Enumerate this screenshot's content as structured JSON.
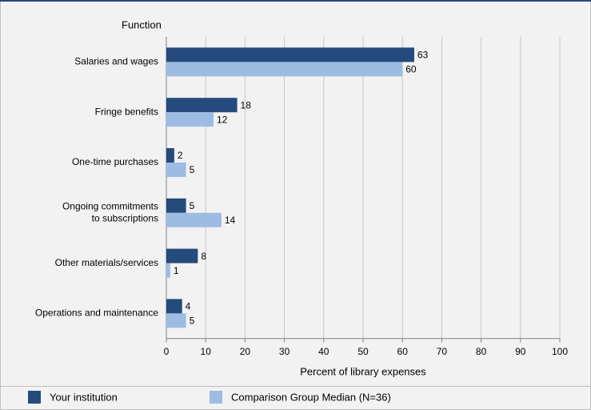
{
  "chart_data": {
    "type": "bar",
    "orientation": "horizontal",
    "y_axis_title": "Function",
    "x_axis_title": "Percent of library expenses",
    "categories": [
      "Salaries and wages",
      "Fringe benefits",
      "One-time purchases",
      "Ongoing commitments\nto subscriptions",
      "Other materials/services",
      "Operations and maintenance"
    ],
    "series": [
      {
        "name": "Your institution",
        "color": "#254a7c",
        "values": [
          63,
          18,
          2,
          5,
          8,
          4
        ]
      },
      {
        "name": "Comparison Group Median (N=36)",
        "color": "#9dbce4",
        "values": [
          60,
          12,
          5,
          14,
          1,
          5
        ]
      }
    ],
    "xlim": [
      0,
      100
    ],
    "xticks": [
      0,
      10,
      20,
      30,
      40,
      50,
      60,
      70,
      80,
      90,
      100
    ],
    "grid": true
  }
}
